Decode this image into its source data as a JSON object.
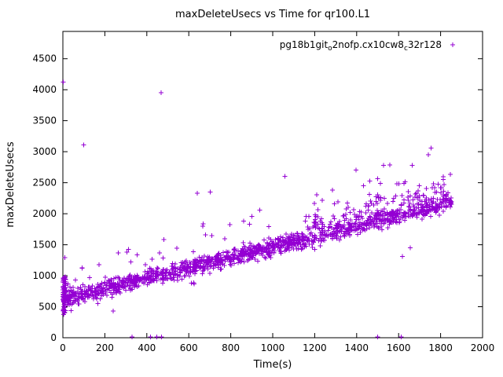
{
  "window": {
    "background": "#ffffff"
  },
  "chart_data": {
    "type": "scatter",
    "title": "maxDeleteUsecs vs Time for qr100.L1",
    "xlabel": "Time(s)",
    "ylabel": "maxDeleteUsecs",
    "xlim": [
      0,
      2000
    ],
    "ylim": [
      0,
      4940
    ],
    "xticks": [
      0,
      200,
      400,
      600,
      800,
      1000,
      1200,
      1400,
      1600,
      1800,
      2000
    ],
    "yticks": [
      0,
      500,
      1000,
      1500,
      2000,
      2500,
      3000,
      3500,
      4000,
      4500
    ],
    "grid": false,
    "legend": {
      "position": "top-right-inside",
      "label_plain": "pg18b1git_o2nofp.cx10cw8_c32r128",
      "segments": [
        {
          "text": "pg18b1git"
        },
        {
          "text": "o",
          "sub": true
        },
        {
          "text": "2nofp.cx10cw8"
        },
        {
          "text": "c",
          "sub": true
        },
        {
          "text": "32r128"
        }
      ]
    },
    "series": [
      {
        "name": "pg18b1git_o2nofp.cx10cw8_c32r128",
        "marker": "plus",
        "color": "#9400d3",
        "trend": {
          "shape": "linear",
          "t_start": 0,
          "t_end": 1855,
          "v_start": 620,
          "v_end": 2180
        },
        "scatter_model": {
          "count": 1560,
          "seed": 20250613,
          "noise_std": 65,
          "spike_prob": 0.055,
          "spike_max": 650,
          "late_spread_after_t": 1150,
          "late_spread_prob": 0.3,
          "late_spread_max": 380,
          "low_dip_prob": 0.012,
          "low_dip_max": 260
        },
        "start_cluster": {
          "count": 70,
          "t_max": 14,
          "v_min": 380,
          "v_max": 1020
        },
        "outliers": [
          [
            2,
            4120
          ],
          [
            3,
            375
          ],
          [
            100,
            3110
          ],
          [
            240,
            430
          ],
          [
            330,
            10
          ],
          [
            418,
            10
          ],
          [
            447,
            10
          ],
          [
            468,
            3950
          ],
          [
            470,
            10
          ],
          [
            640,
            2330
          ],
          [
            703,
            2350
          ],
          [
            1058,
            2600
          ],
          [
            1285,
            2380
          ],
          [
            1432,
            2450
          ],
          [
            1500,
            10
          ],
          [
            1528,
            2780
          ],
          [
            1602,
            2480
          ],
          [
            1612,
            10
          ],
          [
            1618,
            1310
          ],
          [
            1655,
            1450
          ],
          [
            1742,
            2950
          ],
          [
            1755,
            3060
          ]
        ]
      }
    ]
  }
}
